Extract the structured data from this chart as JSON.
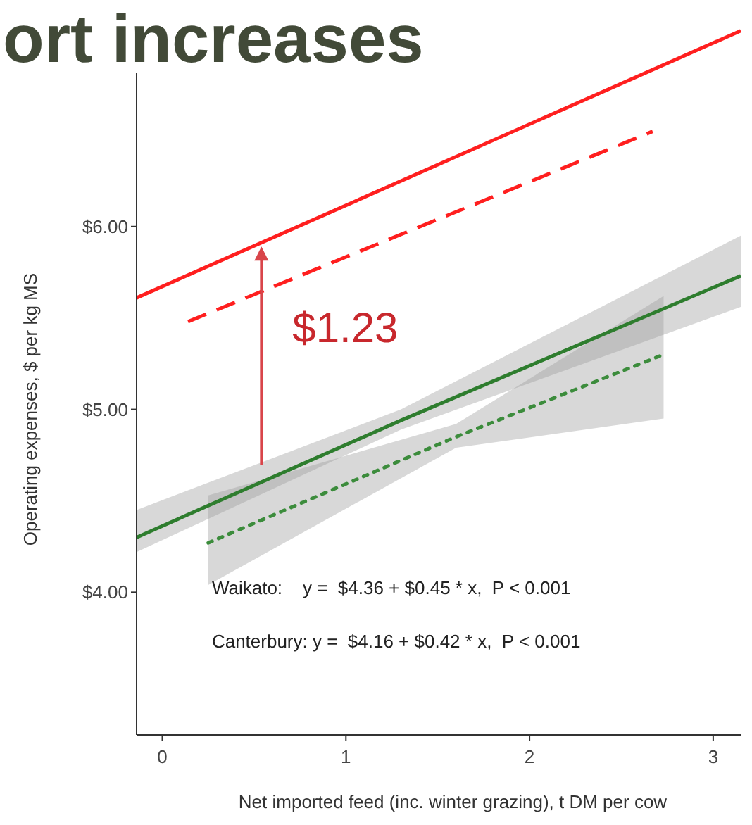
{
  "chart_data": {
    "type": "line",
    "title": "ort increases",
    "xlabel": "Net imported feed (inc. winter grazing), t DM per cow",
    "ylabel": "Operating expenses, $ per kg MS",
    "xlim": [
      -0.14,
      3.15
    ],
    "xticks": [
      0,
      1,
      2,
      3
    ],
    "ylim": [
      3.22,
      7.1
    ],
    "yticks": [
      {
        "value": 4,
        "label": "$4.00"
      },
      {
        "value": 5,
        "label": "$5.00"
      },
      {
        "value": 6,
        "label": "$6.00"
      }
    ],
    "marker": "none",
    "series": [
      {
        "color": "#ff1f1f",
        "line_style": "solid",
        "x": [
          -0.14,
          3.15
        ],
        "values": [
          5.61,
          7.07
        ]
      },
      {
        "color": "#ff1f1f",
        "line_style": "dashed",
        "x": [
          0.14,
          2.67
        ],
        "values": [
          5.48,
          6.52
        ]
      },
      {
        "color": "#2e7d2e",
        "line_style": "solid",
        "x": [
          -0.14,
          1.3,
          3.15
        ],
        "values": [
          4.3,
          4.94,
          5.73
        ],
        "lower": [
          4.22,
          4.89,
          5.56
        ],
        "upper": [
          4.45,
          5.0,
          5.95
        ]
      },
      {
        "color": "#3c8c3c",
        "line_style": "dotted",
        "x": [
          0.25,
          1.6,
          2.73
        ],
        "values": [
          4.27,
          4.85,
          5.3
        ],
        "lower": [
          4.04,
          4.79,
          4.95
        ],
        "upper": [
          4.53,
          4.92,
          5.62
        ]
      }
    ],
    "annotations": [
      {
        "text": "$1.23",
        "x": 0.54,
        "y": 5.89
      },
      "Waikato:    y =  $4.36 + $0.45 * x,  P < 0.001",
      "Canterbury: y =  $4.16 + $0.42 * x,  P < 0.001"
    ]
  }
}
